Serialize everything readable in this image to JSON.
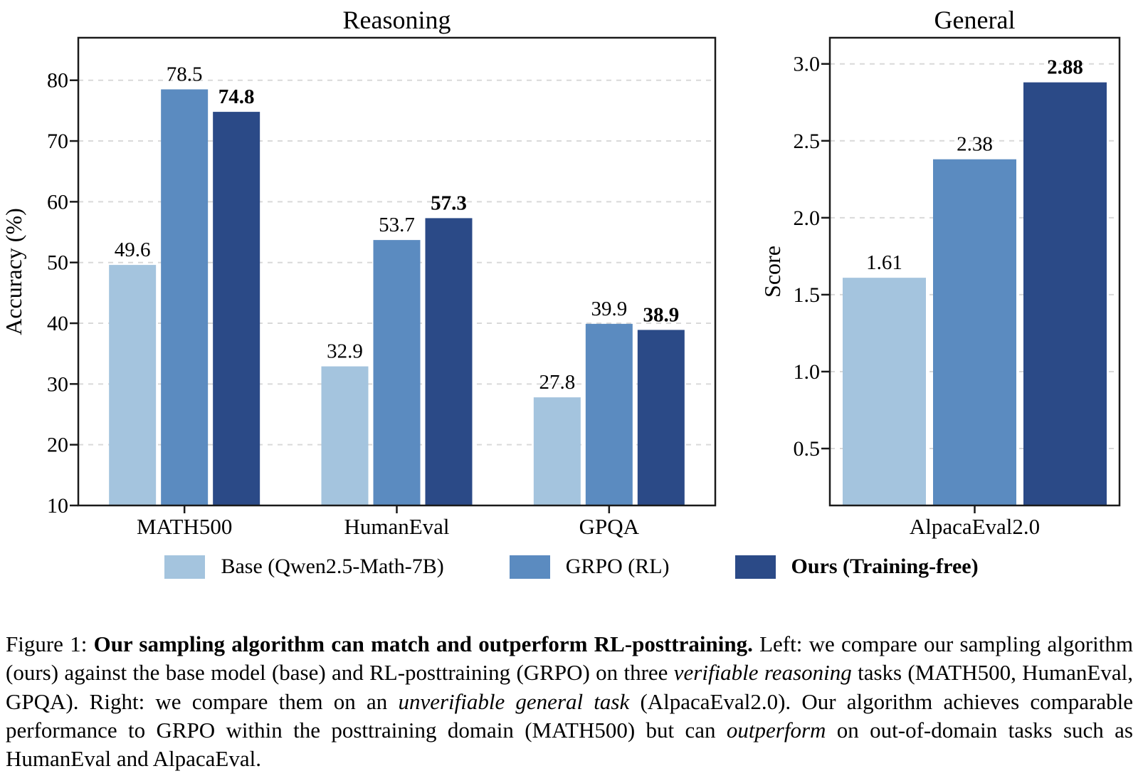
{
  "figure_label": "Figure 1:",
  "chart_data": [
    {
      "type": "bar",
      "title": "Reasoning",
      "xlabel": "",
      "ylabel": "Accuracy (%)",
      "categories": [
        "MATH500",
        "HumanEval",
        "GPQA"
      ],
      "series": [
        {
          "name": "Base (Qwen2.5-Math-7B)",
          "values": [
            49.6,
            32.9,
            27.8
          ],
          "value_labels": [
            "49.6",
            "32.9",
            "27.8"
          ],
          "bold_labels": false
        },
        {
          "name": "GRPO (RL)",
          "values": [
            78.5,
            53.7,
            39.9
          ],
          "value_labels": [
            "78.5",
            "53.7",
            "39.9"
          ],
          "bold_labels": false
        },
        {
          "name": "Ours (Training-free)",
          "values": [
            74.8,
            57.3,
            38.9
          ],
          "value_labels": [
            "74.8",
            "57.3",
            "38.9"
          ],
          "bold_labels": true
        }
      ],
      "ylim": [
        10,
        87
      ],
      "yticks": [
        10,
        20,
        30,
        40,
        50,
        60,
        70,
        80
      ],
      "ytick_labels": [
        "10",
        "20",
        "30",
        "40",
        "50",
        "60",
        "70",
        "80"
      ],
      "grid": "horizontal dashed",
      "legend_position": "below figure"
    },
    {
      "type": "bar",
      "title": "General",
      "xlabel": "",
      "ylabel": "Score",
      "categories": [
        "AlpacaEval2.0"
      ],
      "series": [
        {
          "name": "Base (Qwen2.5-Math-7B)",
          "values": [
            1.61
          ],
          "value_labels": [
            "1.61"
          ],
          "bold_labels": false
        },
        {
          "name": "GRPO (RL)",
          "values": [
            2.38
          ],
          "value_labels": [
            "2.38"
          ],
          "bold_labels": false
        },
        {
          "name": "Ours (Training-free)",
          "values": [
            2.88
          ],
          "value_labels": [
            "2.88"
          ],
          "bold_labels": true
        }
      ],
      "ylim": [
        0.13,
        3.17
      ],
      "yticks": [
        0.5,
        1.0,
        1.5,
        2.0,
        2.5,
        3.0
      ],
      "ytick_labels": [
        "0.5",
        "1.0",
        "1.5",
        "2.0",
        "2.5",
        "3.0"
      ],
      "grid": "horizontal dashed",
      "legend_position": "below figure"
    }
  ],
  "legend": {
    "entries": [
      {
        "label": "Base (Qwen2.5-Math-7B)",
        "color": "#A4C4DE",
        "bold": false
      },
      {
        "label": "GRPO (RL)",
        "color": "#5B8BC0",
        "bold": false
      },
      {
        "label": "Ours (Training-free)",
        "color": "#2B4A87",
        "bold": true
      }
    ]
  },
  "style": {
    "series_colors": [
      "#A4C4DE",
      "#5B8BC0",
      "#2B4A87"
    ],
    "grid_color": "#D9D9D9",
    "frame_color": "#1A1A1A"
  },
  "caption": {
    "segments": [
      {
        "text": "Figure 1: ",
        "style": "normal"
      },
      {
        "text": "Our sampling algorithm can match and outperform RL-posttraining.",
        "style": "bold"
      },
      {
        "text": " Left: we compare our sampling algorithm (ours) against the base model (base) and RL-posttraining (GRPO) on three ",
        "style": "normal"
      },
      {
        "text": "verifiable reasoning",
        "style": "italic"
      },
      {
        "text": " tasks (MATH500, HumanEval, GPQA). Right: we compare them on an ",
        "style": "normal"
      },
      {
        "text": "unverifiable general task",
        "style": "italic"
      },
      {
        "text": " (AlpacaEval2.0). Our algorithm achieves comparable performance to GRPO within the posttraining domain (MATH500) but can ",
        "style": "normal"
      },
      {
        "text": "outperform",
        "style": "italic"
      },
      {
        "text": " on out-of-domain tasks such as HumanEval and AlpacaEval.",
        "style": "normal"
      }
    ]
  }
}
